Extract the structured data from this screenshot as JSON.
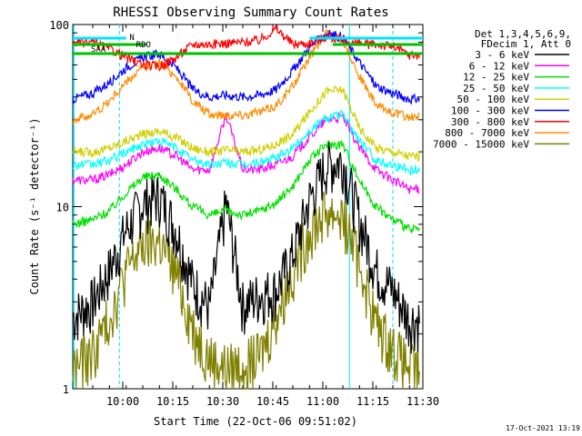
{
  "chart_data": {
    "type": "line",
    "title": "RHESSI Observing Summary Count Rates",
    "ylabel": "Count Rate (s⁻¹ detector⁻¹)",
    "xlabel": "Start Time (22-Oct-06 09:51:02)",
    "yscale": "log",
    "ylim": [
      1,
      100
    ],
    "xlim": [
      -6,
      99
    ],
    "x_ticks": [
      {
        "minute": 9,
        "label": "10:00"
      },
      {
        "minute": 24,
        "label": "10:15"
      },
      {
        "minute": 39,
        "label": "10:30"
      },
      {
        "minute": 54,
        "label": "10:45"
      },
      {
        "minute": 69,
        "label": "11:00"
      },
      {
        "minute": 84,
        "label": "11:15"
      },
      {
        "minute": 99,
        "label": "11:30"
      }
    ],
    "y_ticks": [
      {
        "value": 1,
        "label": "1"
      },
      {
        "value": 10,
        "label": "10"
      },
      {
        "value": 100,
        "label": "100"
      }
    ],
    "legend_header": [
      "Det 1,3,4,5,6,9,",
      "FDecim 1, Att 0"
    ],
    "legend_position": "right",
    "timestamp": "17-Oct-2021 13:19",
    "flags": [
      {
        "label": "N",
        "color": "#00e5ff"
      },
      {
        "label": "RDO",
        "color": "#00c000"
      },
      {
        "label": "SAA",
        "color": "#00c000"
      }
    ],
    "x": [
      -6,
      0,
      5,
      10,
      15,
      20,
      25,
      30,
      35,
      40,
      45,
      50,
      55,
      60,
      65,
      70,
      75,
      80,
      85,
      90,
      95
    ],
    "series": [
      {
        "name": "3 - 6 keV",
        "color": "#000000",
        "values": [
          2.5,
          3,
          4.5,
          7.5,
          10.5,
          11.5,
          7.5,
          3.8,
          2.8,
          10.5,
          2.9,
          3.3,
          3.5,
          5.5,
          11,
          17,
          18,
          8.5,
          4.5,
          3.5,
          2.4
        ]
      },
      {
        "name": "6 - 12 keV",
        "color": "#ff00ff",
        "values": [
          14,
          14,
          15,
          17,
          20,
          21,
          19,
          16,
          16,
          32,
          16,
          16,
          17,
          19,
          24,
          30,
          31,
          21,
          16,
          14,
          12.5
        ]
      },
      {
        "name": "12 - 25 keV",
        "color": "#00e000",
        "values": [
          8,
          8.5,
          9.5,
          12,
          14.5,
          15,
          12.5,
          10,
          9,
          9.5,
          9,
          9.5,
          10.5,
          13,
          18,
          22,
          22,
          14,
          10,
          8.5,
          7.5
        ]
      },
      {
        "name": "25 - 50 keV",
        "color": "#00ffff",
        "values": [
          17,
          17,
          18,
          20,
          22,
          23,
          21,
          18,
          17,
          17.5,
          17,
          17.5,
          18.5,
          21,
          26,
          31,
          32,
          23,
          18,
          17,
          16
        ]
      },
      {
        "name": "50 - 100 keV",
        "color": "#d0d000",
        "values": [
          20,
          20,
          21,
          23,
          25,
          26,
          24,
          21,
          20,
          20.5,
          20,
          20.5,
          22,
          25,
          33,
          43,
          44,
          27,
          21,
          20,
          19
        ]
      },
      {
        "name": "100 - 300 keV",
        "color": "#0000ff",
        "values": [
          39,
          42,
          48,
          58,
          66,
          69,
          58,
          44,
          40,
          41,
          40,
          41,
          44,
          56,
          75,
          89,
          85,
          62,
          46,
          42,
          39
        ]
      },
      {
        "name": "300 - 800 keV",
        "color": "#ff0000",
        "values": [
          79,
          80,
          74,
          66,
          60,
          59,
          66,
          78,
          78,
          79,
          80,
          82,
          95,
          78,
          79,
          86,
          82,
          78,
          78,
          76,
          68
        ]
      },
      {
        "name": "800 - 7000 keV",
        "color": "#ff8c00",
        "values": [
          30,
          32,
          38,
          48,
          58,
          62,
          52,
          38,
          32,
          32,
          32,
          33,
          36,
          46,
          66,
          90,
          83,
          52,
          36,
          33,
          31
        ]
      },
      {
        "name": "7000 - 15000 keV",
        "color": "#808000",
        "values": [
          1.3,
          1.6,
          2.5,
          4.5,
          6.2,
          6.5,
          4.3,
          2.2,
          1.5,
          1.3,
          1.4,
          1.5,
          2.5,
          4.5,
          7.5,
          9.5,
          9,
          5,
          2.3,
          1.7,
          1.3
        ]
      }
    ]
  }
}
